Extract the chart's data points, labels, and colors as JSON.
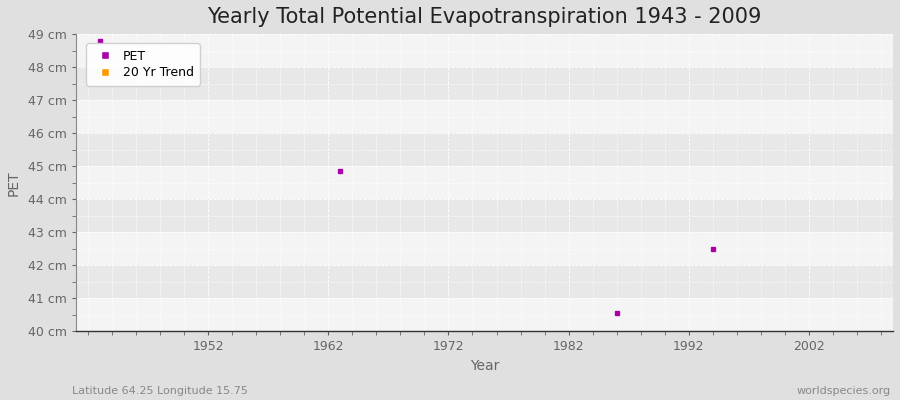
{
  "title": "Yearly Total Potential Evapotranspiration 1943 - 2009",
  "xlabel": "Year",
  "ylabel": "PET",
  "subtitle_left": "Latitude 64.25 Longitude 15.75",
  "subtitle_right": "worldspecies.org",
  "background_color": "#e8e8e8",
  "plot_background_color": "#efefef",
  "band_color_light": "#f4f4f4",
  "band_color_dark": "#e8e8e8",
  "ylim": [
    40,
    49
  ],
  "xlim": [
    1941,
    2009
  ],
  "ytick_labels": [
    "40 cm",
    "41 cm",
    "42 cm",
    "43 cm",
    "44 cm",
    "45 cm",
    "46 cm",
    "47 cm",
    "48 cm",
    "49 cm"
  ],
  "ytick_values": [
    40,
    41,
    42,
    43,
    44,
    45,
    46,
    47,
    48,
    49
  ],
  "xtick_values": [
    1952,
    1962,
    1972,
    1982,
    1992,
    2002
  ],
  "pet_data": [
    {
      "year": 1943,
      "value": 48.8
    },
    {
      "year": 1963,
      "value": 44.85
    },
    {
      "year": 1986,
      "value": 40.55
    },
    {
      "year": 1994,
      "value": 42.5
    }
  ],
  "pet_color": "#aa00aa",
  "trend_color": "#ff9900",
  "grid_color": "#ffffff",
  "grid_linestyle": "--",
  "grid_linewidth": 0.6,
  "tick_label_color": "#666666",
  "legend_items": [
    "PET",
    "20 Yr Trend"
  ],
  "legend_colors": [
    "#aa00aa",
    "#ff9900"
  ],
  "title_fontsize": 15,
  "axis_label_fontsize": 10,
  "tick_fontsize": 9,
  "marker_size": 2.5
}
